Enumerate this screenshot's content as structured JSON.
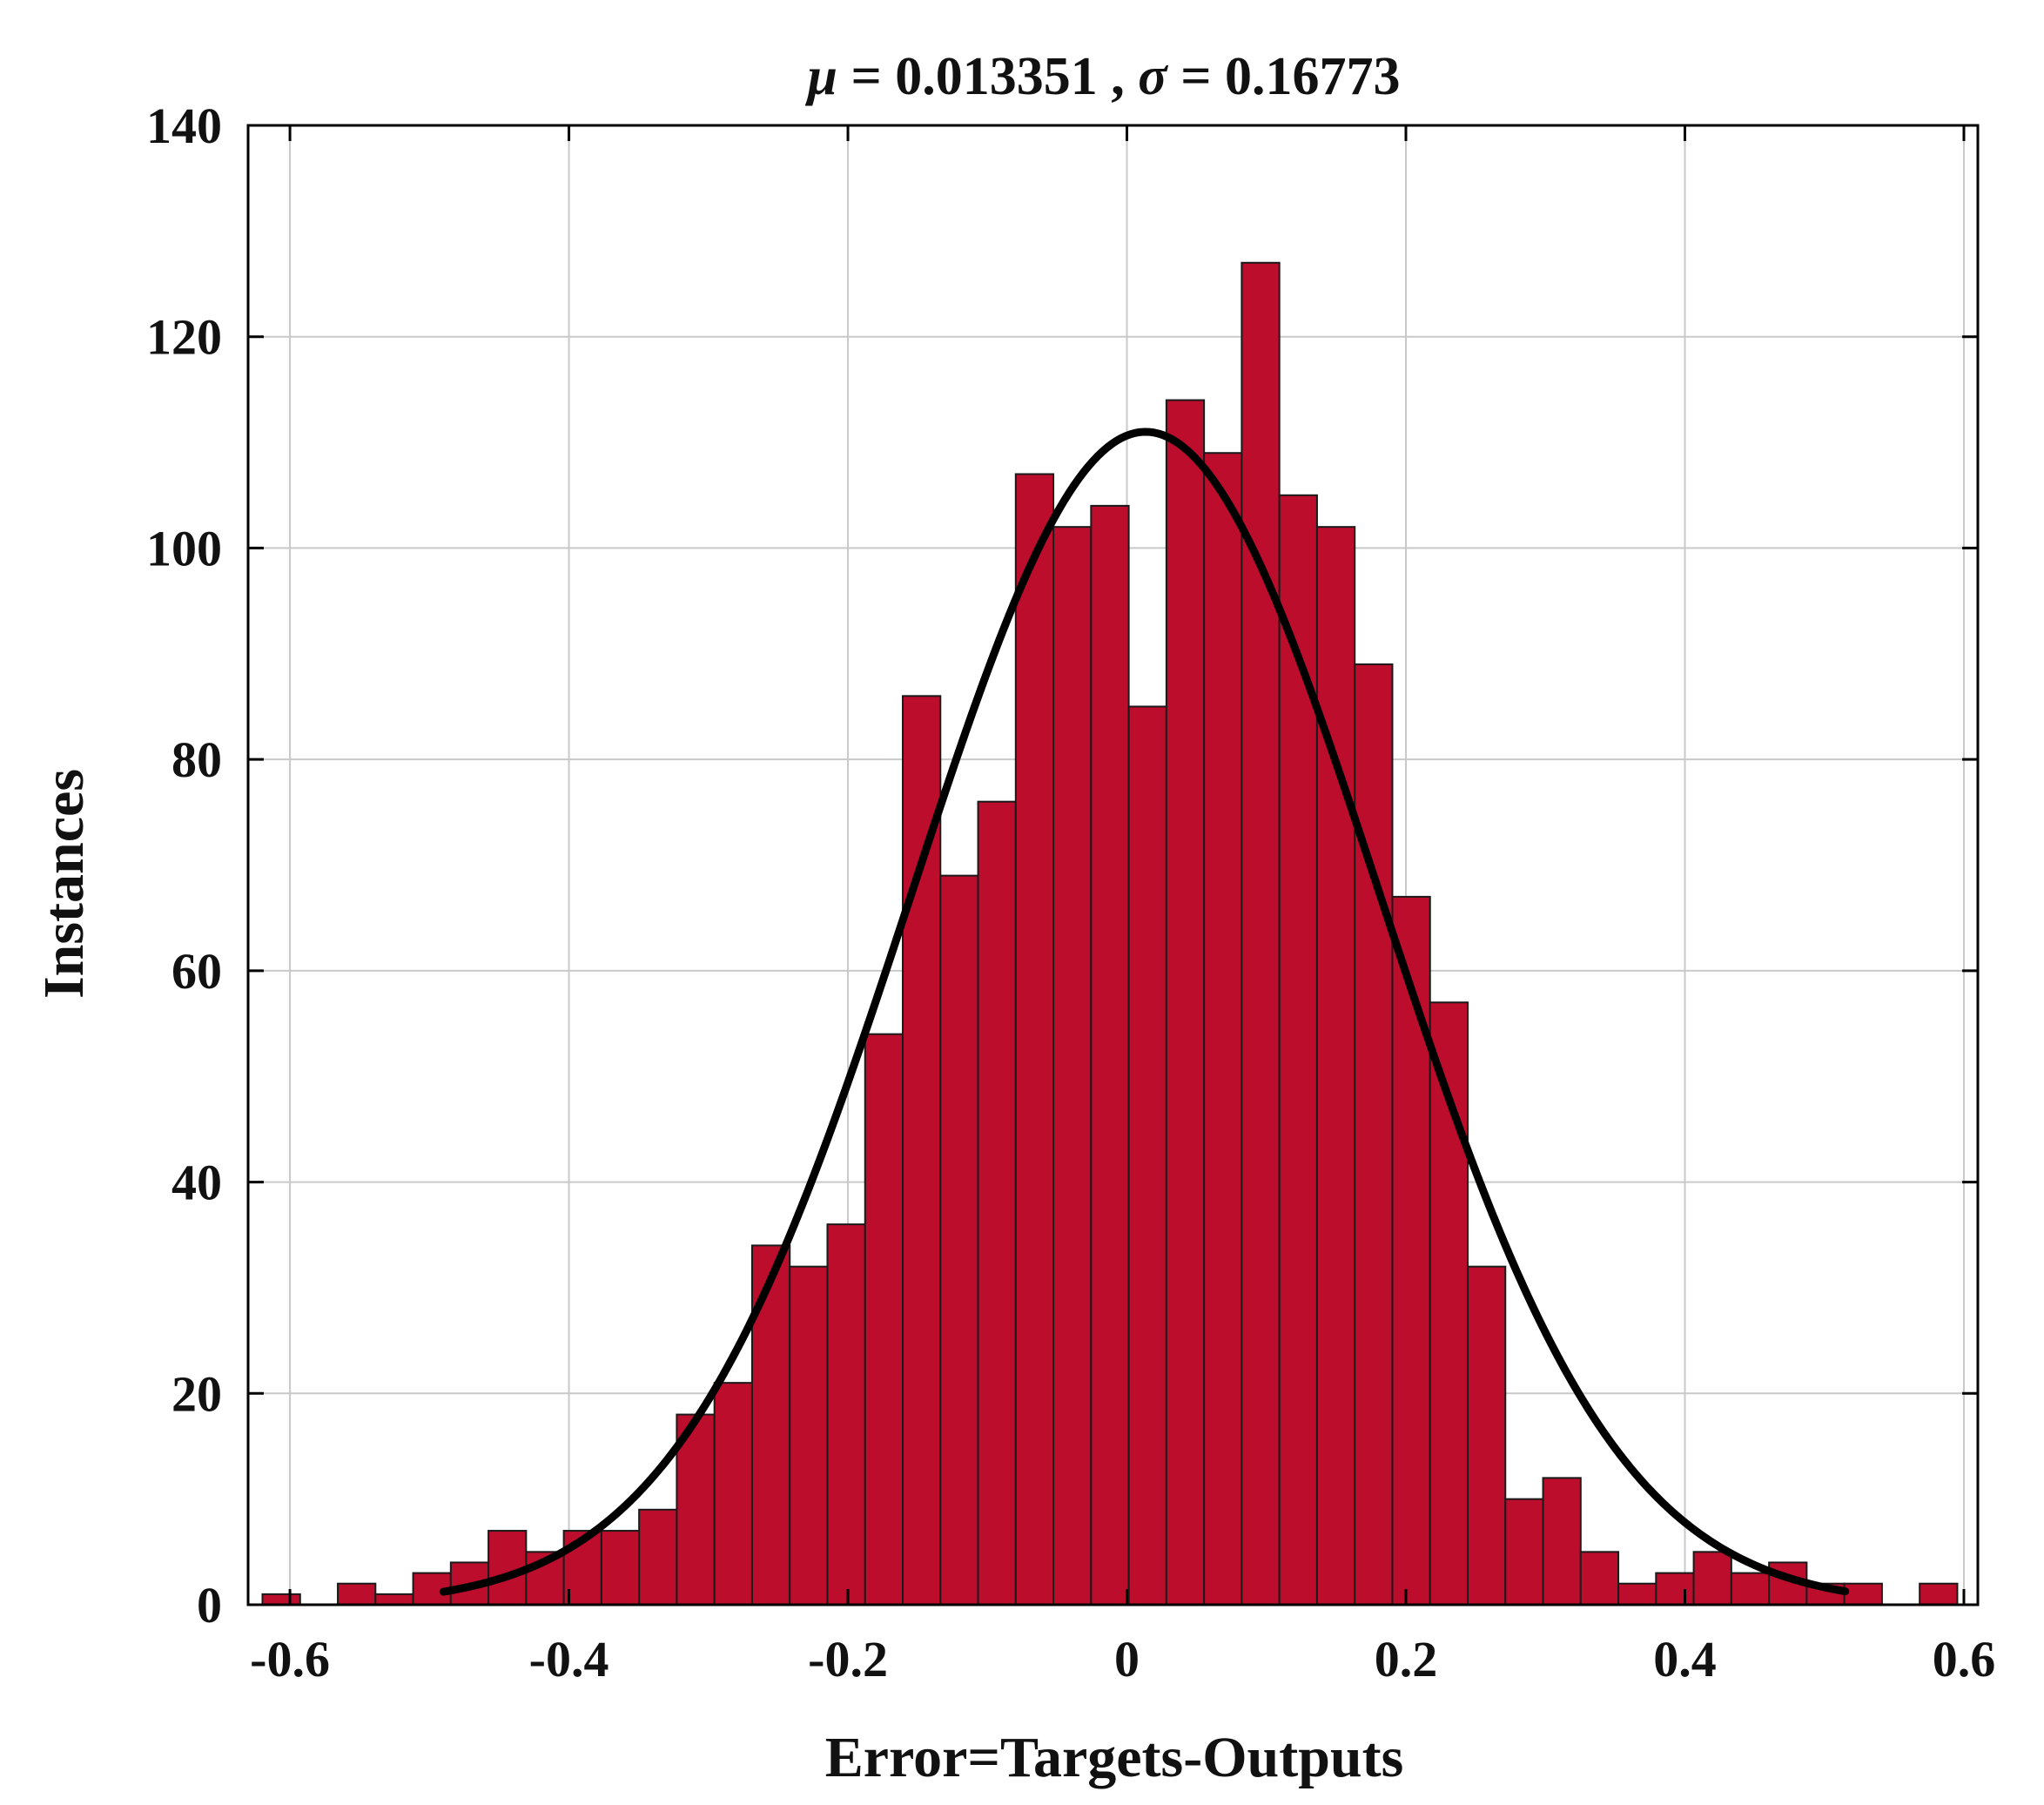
{
  "chart_data": {
    "type": "bar",
    "title_parts": {
      "mu_symbol": "μ",
      "mu_text": " = 0.013351 , ",
      "sigma_symbol": "σ",
      "sigma_text": " = 0.16773"
    },
    "xlabel": "Error=Targets-Outputs",
    "ylabel": "Instances",
    "xlim": [
      -0.63,
      0.61
    ],
    "ylim": [
      0,
      140
    ],
    "xticks": [
      -0.6,
      -0.4,
      -0.2,
      0,
      0.2,
      0.4,
      0.6
    ],
    "xtick_labels": [
      "-0.6",
      "-0.4",
      "-0.2",
      "0",
      "0.2",
      "0.4",
      "0.6"
    ],
    "yticks": [
      0,
      20,
      40,
      60,
      80,
      100,
      120,
      140
    ],
    "ytick_labels": [
      "0",
      "20",
      "40",
      "60",
      "80",
      "100",
      "120",
      "140"
    ],
    "grid": true,
    "bin_start": -0.6197,
    "bin_width": 0.027,
    "values": [
      1,
      0,
      2,
      1,
      3,
      4,
      7,
      5,
      7,
      7,
      9,
      18,
      21,
      34,
      32,
      36,
      54,
      86,
      69,
      76,
      107,
      102,
      104,
      85,
      114,
      109,
      127,
      105,
      102,
      89,
      67,
      57,
      32,
      10,
      12,
      5,
      2,
      3,
      5,
      3,
      4,
      2,
      2,
      0,
      2
    ],
    "fit_curve": {
      "type": "normal",
      "mu": 0.013351,
      "sigma": 0.16773,
      "peak": 111,
      "x_range": [
        -0.49,
        0.515
      ]
    },
    "colors": {
      "bar_fill": "#BC0D2D",
      "bar_edge": "#1a1a1a",
      "curve": "#000000",
      "grid": "#c9c9c9"
    }
  }
}
